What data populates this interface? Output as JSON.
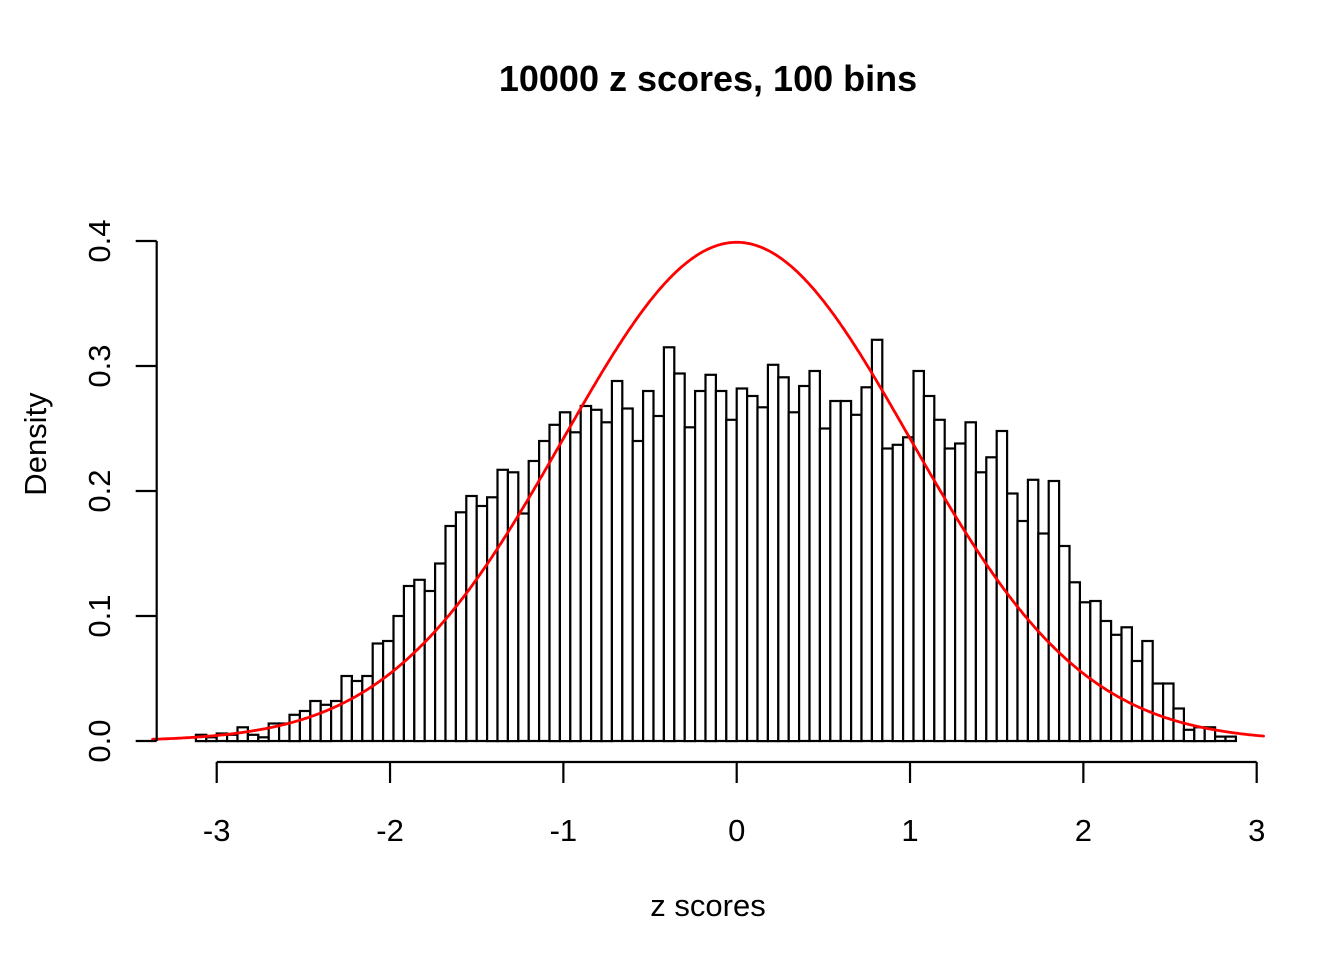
{
  "page": {
    "background": "#ffffff"
  },
  "chart_data": {
    "type": "bar",
    "subtype": "histogram-with-density-curve",
    "title": "10000 z scores, 100 bins",
    "xlabel": "z scores",
    "ylabel": "Density",
    "x_ticks": [
      {
        "label": "-3",
        "value": -3
      },
      {
        "label": "-2",
        "value": -2
      },
      {
        "label": "-1",
        "value": -1
      },
      {
        "label": "0",
        "value": 0
      },
      {
        "label": "1",
        "value": 1
      },
      {
        "label": "2",
        "value": 2
      },
      {
        "label": "3",
        "value": 3
      }
    ],
    "y_ticks": [
      {
        "label": "0.0",
        "value": 0.0
      },
      {
        "label": "0.1",
        "value": 0.1
      },
      {
        "label": "0.2",
        "value": 0.2
      },
      {
        "label": "0.3",
        "value": 0.3
      },
      {
        "label": "0.4",
        "value": 0.4
      }
    ],
    "xlim": [
      -3.37,
      3.04
    ],
    "ylim": [
      0,
      0.4
    ],
    "grid": false,
    "legend": "none",
    "bins": {
      "start": -3.12,
      "width": 0.06,
      "count": 100,
      "densities": [
        0.005,
        0.003,
        0.006,
        0.005,
        0.011,
        0.005,
        0.003,
        0.014,
        0.014,
        0.021,
        0.024,
        0.032,
        0.029,
        0.032,
        0.052,
        0.048,
        0.052,
        0.078,
        0.08,
        0.1,
        0.124,
        0.129,
        0.12,
        0.142,
        0.172,
        0.183,
        0.196,
        0.188,
        0.195,
        0.217,
        0.215,
        0.182,
        0.224,
        0.24,
        0.253,
        0.263,
        0.247,
        0.268,
        0.265,
        0.255,
        0.288,
        0.266,
        0.24,
        0.28,
        0.26,
        0.315,
        0.294,
        0.251,
        0.28,
        0.293,
        0.28,
        0.257,
        0.282,
        0.276,
        0.267,
        0.301,
        0.291,
        0.263,
        0.284,
        0.296,
        0.25,
        0.272,
        0.272,
        0.261,
        0.283,
        0.321,
        0.234,
        0.237,
        0.243,
        0.296,
        0.276,
        0.257,
        0.234,
        0.238,
        0.255,
        0.215,
        0.227,
        0.248,
        0.198,
        0.176,
        0.209,
        0.166,
        0.208,
        0.156,
        0.127,
        0.111,
        0.112,
        0.096,
        0.085,
        0.091,
        0.064,
        0.08,
        0.046,
        0.046,
        0.026,
        0.009,
        0.011,
        0.011,
        0.0035,
        0.0035
      ]
    },
    "overlay_curve": {
      "kind": "normal_density",
      "mean": 0,
      "sd": 1,
      "peak_density": 0.3989,
      "x_from": -3.37,
      "x_to": 3.04,
      "color": "#ff0000"
    },
    "colors": {
      "bar_fill": "#ffffff",
      "bar_stroke": "#000000",
      "axis": "#000000",
      "curve": "#ff0000",
      "text": "#000000"
    }
  }
}
